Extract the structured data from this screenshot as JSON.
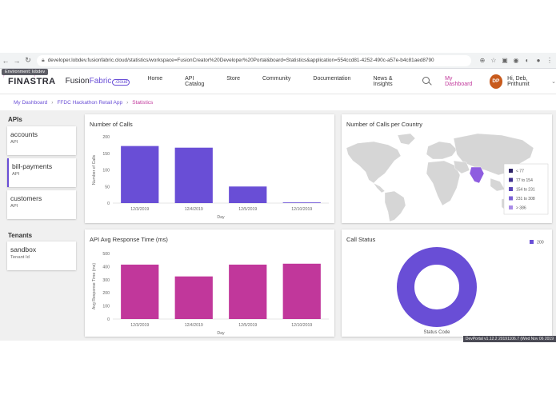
{
  "browser": {
    "url": "developer.lobdev.fusionfabric.cloud/statistics/workspace=FusionCreator%20Developer%20Portal&board=Statistics&application=554ccd81-4252-490c-a57e-b4c81aed8790"
  },
  "env_tag": "Environment: lobdev",
  "header": {
    "logo_finastra": "FINASTRA",
    "logo_fusion": "Fusion",
    "logo_fabric": "Fabric",
    "logo_cloud": ".cloud",
    "nav": [
      "Home",
      "API Catalog",
      "Store",
      "Community",
      "Documentation",
      "News & Insights"
    ],
    "my_dashboard": "My Dashboard",
    "avatar_initials": "DP",
    "username": "Hi, Deb, Prithumit"
  },
  "breadcrumb": {
    "items": [
      "My Dashboard",
      "FFDC Hackathon Retail App"
    ],
    "current": "Statistics"
  },
  "sidebar": {
    "apis_title": "APIs",
    "apis": [
      {
        "name": "accounts",
        "type": "API"
      },
      {
        "name": "bill-payments",
        "type": "API"
      },
      {
        "name": "customers",
        "type": "API"
      }
    ],
    "tenants_title": "Tenants",
    "tenants": [
      {
        "name": "sandbox",
        "type": "Tenant Id"
      }
    ]
  },
  "colors": {
    "accent": "#694ed6",
    "brand_pink": "#c1379b",
    "bar_calls": "#694ed6",
    "bar_response": "#c1379b",
    "map_land": "#d6d6d6",
    "map_highlight": "#8e5de0"
  },
  "panels": {
    "calls_title": "Number of Calls",
    "calls_country_title": "Number of Calls per Country",
    "response_title": "API Avg Response Time (ms)",
    "status_title": "Call Status"
  },
  "chart_data": [
    {
      "type": "bar",
      "title": "Number of Calls",
      "xlabel": "Day",
      "ylabel": "Number of Calls",
      "categories": [
        "12/3/2019",
        "12/4/2019",
        "12/5/2019",
        "12/10/2019"
      ],
      "values": [
        172,
        167,
        50,
        2
      ],
      "ylim": [
        0,
        200
      ],
      "yticks": [
        0,
        50,
        100,
        150,
        200
      ],
      "grid": false
    },
    {
      "type": "bar",
      "title": "API Avg Response Time (ms)",
      "xlabel": "Day",
      "ylabel": "Avg Response Time (ms)",
      "categories": [
        "12/3/2019",
        "12/4/2019",
        "12/5/2019",
        "12/10/2019"
      ],
      "values": [
        415,
        325,
        415,
        422
      ],
      "ylim": [
        0,
        500
      ],
      "yticks": [
        0,
        100,
        200,
        300,
        400,
        500
      ],
      "grid": false
    },
    {
      "type": "pie",
      "title": "Call Status",
      "subtitle": "Status Code",
      "labels": [
        "200"
      ],
      "values": [
        100
      ],
      "donut": true,
      "legend": "top-right"
    }
  ],
  "map_legend": [
    "< 77",
    "77 to 154",
    "154 to 231",
    "231 to 308",
    "> 386"
  ],
  "map_legend_colors": [
    "#2d2266",
    "#3f2f8f",
    "#5a44b8",
    "#7a5fd6",
    "#a98be8"
  ],
  "footer": "DevPortal v1.12.2 20191106.7 (Wed Nov 06 2019"
}
